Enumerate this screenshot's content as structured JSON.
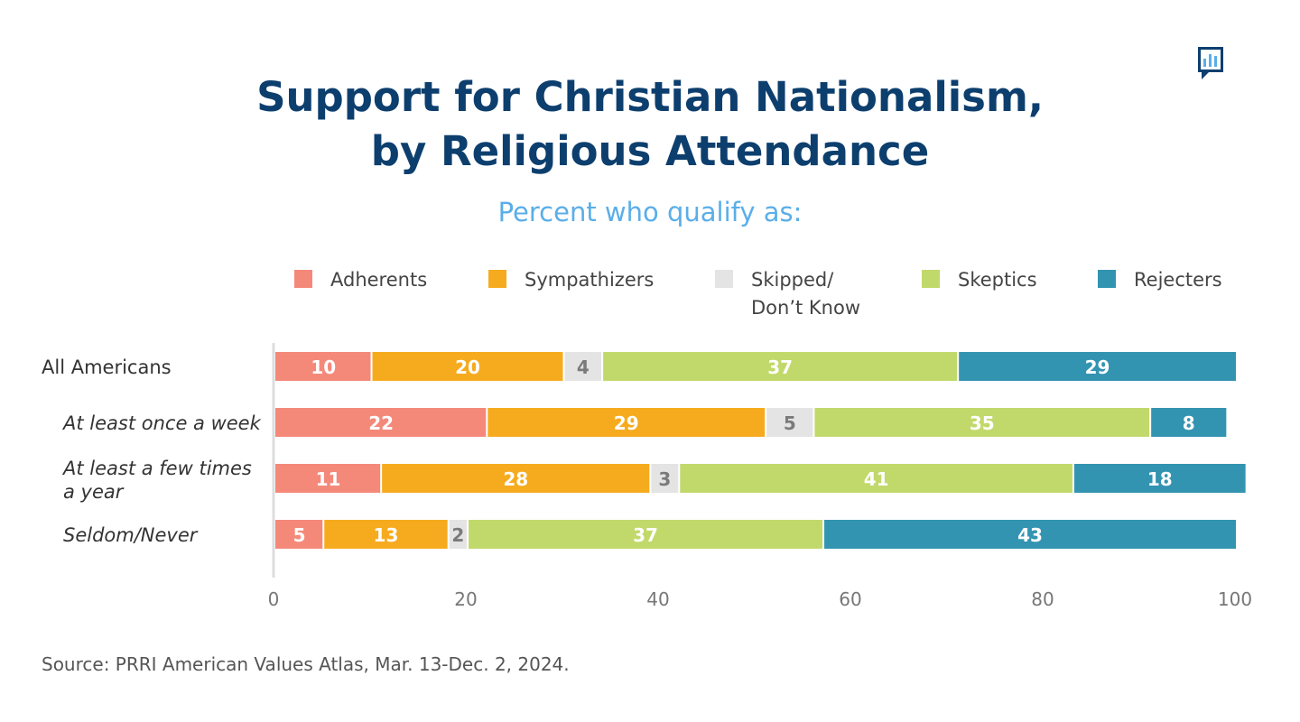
{
  "chart_data": {
    "type": "bar",
    "orientation": "horizontal-stacked",
    "title_line1": "Support for Christian Nationalism,",
    "title_line2": "by Religious Attendance",
    "subtitle": "Percent who qualify as:",
    "source": "Source: PRRI American Values Atlas, Mar. 13-Dec. 2, 2024.",
    "categories": [
      "All Americans",
      "At least once a week",
      "At least a few times a year",
      "Seldom/Never"
    ],
    "category_label_lines": [
      [
        "All Americans"
      ],
      [
        "At least once a week"
      ],
      [
        "At least a few times",
        "a year"
      ],
      [
        "Seldom/Never"
      ]
    ],
    "category_italic": [
      false,
      true,
      true,
      true
    ],
    "series": [
      {
        "name": "Adherents",
        "legend_lines": [
          "Adherents"
        ],
        "color": "#f4897a",
        "label_color": "#ffffff",
        "values": [
          10,
          22,
          11,
          5
        ]
      },
      {
        "name": "Sympathizers",
        "legend_lines": [
          "Sympathizers"
        ],
        "color": "#f6ab1f",
        "label_color": "#ffffff",
        "values": [
          20,
          29,
          28,
          13
        ]
      },
      {
        "name": "Skipped/Don't Know",
        "legend_lines": [
          "Skipped/",
          "Don’t Know"
        ],
        "color": "#e4e4e5",
        "label_color": "#7a7a7a",
        "values": [
          4,
          5,
          3,
          2
        ]
      },
      {
        "name": "Skeptics",
        "legend_lines": [
          "Skeptics"
        ],
        "color": "#c1d96b",
        "label_color": "#ffffff",
        "values": [
          37,
          35,
          41,
          37
        ]
      },
      {
        "name": "Rejecters",
        "legend_lines": [
          "Rejecters"
        ],
        "color": "#3394b1",
        "label_color": "#ffffff",
        "values": [
          29,
          8,
          18,
          43
        ]
      }
    ],
    "xlim": [
      0,
      100
    ],
    "xticks": [
      0,
      20,
      40,
      60,
      80,
      100
    ],
    "xlabel": "",
    "ylabel": "",
    "grid": false,
    "legend_position": "top"
  }
}
